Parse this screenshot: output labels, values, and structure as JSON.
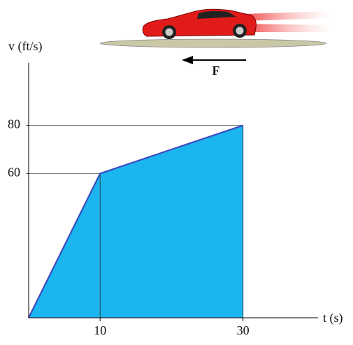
{
  "chart_data": {
    "type": "area",
    "x_label": "t (s)",
    "y_label": "v (ft/s)",
    "annotation": "F",
    "x": [
      0,
      10,
      30
    ],
    "values": [
      0,
      60,
      80
    ],
    "color": "#1bb6ef",
    "line_color": "#3a4cc2",
    "xlim": [
      0,
      40.5
    ],
    "ylim": [
      0,
      106
    ],
    "xticks": [
      10,
      30
    ],
    "yticks": [
      60,
      80
    ]
  }
}
